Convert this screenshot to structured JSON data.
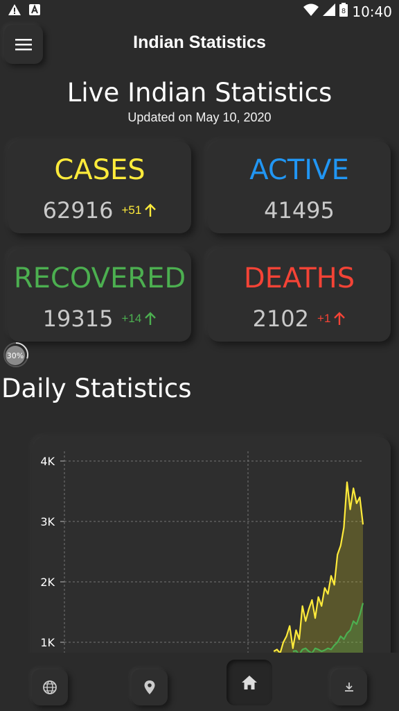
{
  "status_bar": {
    "time": "10:40",
    "battery": "8"
  },
  "header": {
    "title": "Indian Statistics"
  },
  "hero": {
    "title": "Live Indian Statistics",
    "updated": "Updated on May 10, 2020"
  },
  "stats": {
    "cases": {
      "label": "CASES",
      "value": "62916",
      "delta": "+51",
      "color": "#ffeb3b"
    },
    "active": {
      "label": "ACTIVE",
      "value": "41495",
      "color": "#2196f3"
    },
    "recovered": {
      "label": "RECOVERED",
      "value": "19315",
      "delta": "+14",
      "color": "#4caf50"
    },
    "deaths": {
      "label": "DEATHS",
      "value": "2102",
      "delta": "+1",
      "color": "#f44336"
    }
  },
  "progress": {
    "label": "30%",
    "value": 0.3
  },
  "daily": {
    "title": "Daily Statistics"
  },
  "chart_data": {
    "type": "line",
    "y_ticks": [
      "4K",
      "3K",
      "2K",
      "1K"
    ],
    "ylim": [
      0,
      4000
    ],
    "series": [
      {
        "color": "#ffeb3b",
        "values": [
          850,
          880,
          820,
          1000,
          1100,
          1270,
          900,
          1200,
          1050,
          1600,
          1350,
          1550,
          1700,
          1400,
          1750,
          1600,
          1900,
          1800,
          2100,
          1950,
          2450,
          2600,
          2900,
          3650,
          3200,
          3550,
          3300,
          3400,
          2950
        ]
      },
      {
        "color": "#4caf50",
        "values": [
          850,
          860,
          800,
          880,
          900,
          850,
          820,
          900,
          880,
          850,
          870,
          900,
          880,
          950,
          1000,
          1100,
          1050,
          1150,
          1200,
          1350,
          1300,
          1450,
          1650
        ]
      }
    ]
  },
  "nav": {
    "items": [
      "globe-icon",
      "location-icon",
      "home-icon",
      "download-icon"
    ]
  }
}
